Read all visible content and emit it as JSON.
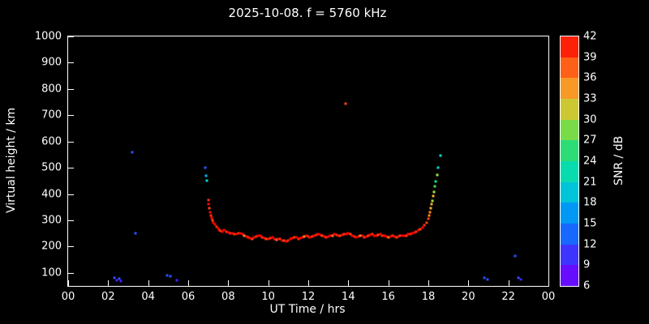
{
  "colors": {
    "background": "#000000",
    "frame": "#ffffff",
    "text": "#ffffff"
  },
  "colorbar": {
    "label": "SNR / dB",
    "range": [
      6,
      42
    ],
    "ticks": [
      6,
      9,
      12,
      15,
      18,
      21,
      24,
      27,
      30,
      33,
      36,
      39,
      42
    ],
    "stops": [
      {
        "v": 6,
        "c": "#8000ff"
      },
      {
        "v": 9,
        "c": "#4b1aff"
      },
      {
        "v": 12,
        "c": "#2e50ff"
      },
      {
        "v": 15,
        "c": "#0080ff"
      },
      {
        "v": 18,
        "c": "#00b0e8"
      },
      {
        "v": 21,
        "c": "#00d8c8"
      },
      {
        "v": 24,
        "c": "#10e096"
      },
      {
        "v": 27,
        "c": "#48d858"
      },
      {
        "v": 30,
        "c": "#a8e038"
      },
      {
        "v": 33,
        "c": "#f0b02c"
      },
      {
        "v": 36,
        "c": "#ff8020"
      },
      {
        "v": 39,
        "c": "#ff4010"
      },
      {
        "v": 42,
        "c": "#ff0000"
      }
    ]
  },
  "chart_data": {
    "type": "scatter",
    "title": "2025-10-08. f = 5760 kHz",
    "xlabel": "UT Time / hrs",
    "ylabel": "Virtual height / km",
    "xlim": [
      0,
      24
    ],
    "ylim": [
      50,
      1000
    ],
    "grid": false,
    "legend": "none (colorbar for SNR / dB on right)",
    "x_ticks": [
      {
        "v": 0,
        "label": "00"
      },
      {
        "v": 2,
        "label": "02"
      },
      {
        "v": 4,
        "label": "04"
      },
      {
        "v": 6,
        "label": "06"
      },
      {
        "v": 8,
        "label": "08"
      },
      {
        "v": 10,
        "label": "10"
      },
      {
        "v": 12,
        "label": "12"
      },
      {
        "v": 14,
        "label": "14"
      },
      {
        "v": 16,
        "label": "16"
      },
      {
        "v": 18,
        "label": "18"
      },
      {
        "v": 20,
        "label": "20"
      },
      {
        "v": 22,
        "label": "22"
      },
      {
        "v": 24,
        "label": "00"
      }
    ],
    "y_ticks": [
      100,
      200,
      300,
      400,
      500,
      600,
      700,
      800,
      900,
      1000
    ],
    "point_meaning": "[UT_hours, virtual_height_km, SNR_dB]",
    "points": [
      [
        2.3,
        80,
        12
      ],
      [
        2.45,
        72,
        9
      ],
      [
        2.55,
        78,
        12
      ],
      [
        2.62,
        70,
        9
      ],
      [
        3.2,
        560,
        12
      ],
      [
        3.35,
        250,
        12
      ],
      [
        4.95,
        90,
        12
      ],
      [
        5.1,
        88,
        12
      ],
      [
        5.45,
        72,
        9
      ],
      [
        6.85,
        500,
        12
      ],
      [
        6.9,
        468,
        18
      ],
      [
        6.94,
        452,
        21
      ],
      [
        7.0,
        378,
        40
      ],
      [
        7.03,
        360,
        42
      ],
      [
        7.06,
        345,
        39
      ],
      [
        7.1,
        332,
        42
      ],
      [
        7.14,
        318,
        40
      ],
      [
        7.18,
        308,
        42
      ],
      [
        7.22,
        300,
        39
      ],
      [
        7.27,
        292,
        42
      ],
      [
        7.33,
        284,
        42
      ],
      [
        7.4,
        276,
        40
      ],
      [
        7.48,
        268,
        42
      ],
      [
        7.56,
        263,
        42
      ],
      [
        7.64,
        260,
        39
      ],
      [
        7.72,
        257,
        42
      ],
      [
        7.8,
        262,
        42
      ],
      [
        7.9,
        256,
        40
      ],
      [
        8.0,
        255,
        42
      ],
      [
        8.1,
        252,
        40
      ],
      [
        8.2,
        250,
        42
      ],
      [
        8.3,
        248,
        39
      ],
      [
        8.4,
        246,
        42
      ],
      [
        8.5,
        250,
        40
      ],
      [
        8.6,
        252,
        42
      ],
      [
        8.7,
        248,
        42
      ],
      [
        8.8,
        242,
        36
      ],
      [
        8.9,
        238,
        42
      ],
      [
        9.0,
        235,
        40
      ],
      [
        9.1,
        232,
        42
      ],
      [
        9.2,
        230,
        39
      ],
      [
        9.3,
        234,
        42
      ],
      [
        9.4,
        238,
        40
      ],
      [
        9.5,
        242,
        42
      ],
      [
        9.6,
        240,
        42
      ],
      [
        9.7,
        236,
        40
      ],
      [
        9.8,
        232,
        42
      ],
      [
        9.9,
        230,
        39
      ],
      [
        10.0,
        228,
        42
      ],
      [
        10.1,
        232,
        40
      ],
      [
        10.2,
        236,
        42
      ],
      [
        10.3,
        230,
        42
      ],
      [
        10.4,
        226,
        36
      ],
      [
        10.5,
        230,
        42
      ],
      [
        10.6,
        228,
        40
      ],
      [
        10.7,
        224,
        42
      ],
      [
        10.8,
        222,
        39
      ],
      [
        10.9,
        220,
        42
      ],
      [
        11.0,
        222,
        40
      ],
      [
        11.1,
        228,
        42
      ],
      [
        11.2,
        232,
        42
      ],
      [
        11.3,
        236,
        39
      ],
      [
        11.4,
        234,
        42
      ],
      [
        11.5,
        230,
        40
      ],
      [
        11.6,
        232,
        42
      ],
      [
        11.7,
        236,
        42
      ],
      [
        11.8,
        238,
        36
      ],
      [
        11.9,
        240,
        42
      ],
      [
        12.0,
        238,
        40
      ],
      [
        12.1,
        236,
        42
      ],
      [
        12.2,
        238,
        39
      ],
      [
        12.3,
        242,
        42
      ],
      [
        12.4,
        244,
        40
      ],
      [
        12.5,
        246,
        42
      ],
      [
        12.6,
        244,
        42
      ],
      [
        12.7,
        240,
        39
      ],
      [
        12.8,
        238,
        42
      ],
      [
        12.9,
        236,
        40
      ],
      [
        13.0,
        238,
        42
      ],
      [
        13.1,
        240,
        42
      ],
      [
        13.2,
        242,
        36
      ],
      [
        13.3,
        246,
        42
      ],
      [
        13.4,
        244,
        40
      ],
      [
        13.5,
        240,
        42
      ],
      [
        13.6,
        242,
        39
      ],
      [
        13.7,
        244,
        42
      ],
      [
        13.8,
        246,
        40
      ],
      [
        13.85,
        745,
        39
      ],
      [
        13.9,
        248,
        42
      ],
      [
        14.0,
        252,
        42
      ],
      [
        14.1,
        248,
        39
      ],
      [
        14.2,
        242,
        42
      ],
      [
        14.3,
        238,
        40
      ],
      [
        14.4,
        236,
        42
      ],
      [
        14.5,
        238,
        42
      ],
      [
        14.6,
        242,
        36
      ],
      [
        14.7,
        240,
        42
      ],
      [
        14.8,
        236,
        40
      ],
      [
        14.9,
        238,
        42
      ],
      [
        15.0,
        240,
        39
      ],
      [
        15.1,
        244,
        42
      ],
      [
        15.2,
        246,
        40
      ],
      [
        15.3,
        242,
        42
      ],
      [
        15.4,
        240,
        42
      ],
      [
        15.5,
        244,
        39
      ],
      [
        15.6,
        246,
        42
      ],
      [
        15.7,
        242,
        40
      ],
      [
        15.8,
        240,
        42
      ],
      [
        15.9,
        238,
        42
      ],
      [
        16.0,
        236,
        36
      ],
      [
        16.1,
        238,
        42
      ],
      [
        16.2,
        240,
        40
      ],
      [
        16.3,
        238,
        42
      ],
      [
        16.4,
        236,
        39
      ],
      [
        16.5,
        238,
        42
      ],
      [
        16.6,
        240,
        40
      ],
      [
        16.7,
        242,
        42
      ],
      [
        16.8,
        240,
        42
      ],
      [
        16.9,
        242,
        39
      ],
      [
        17.0,
        246,
        42
      ],
      [
        17.1,
        248,
        40
      ],
      [
        17.2,
        252,
        42
      ],
      [
        17.3,
        254,
        42
      ],
      [
        17.4,
        258,
        40
      ],
      [
        17.5,
        262,
        42
      ],
      [
        17.6,
        266,
        39
      ],
      [
        17.7,
        272,
        42
      ],
      [
        17.8,
        280,
        40
      ],
      [
        17.9,
        290,
        39
      ],
      [
        18.0,
        305,
        39
      ],
      [
        18.04,
        318,
        36
      ],
      [
        18.08,
        330,
        36
      ],
      [
        18.12,
        345,
        33
      ],
      [
        18.16,
        360,
        33
      ],
      [
        18.2,
        375,
        30
      ],
      [
        18.24,
        392,
        33
      ],
      [
        18.28,
        408,
        30
      ],
      [
        18.33,
        428,
        27
      ],
      [
        18.38,
        448,
        24
      ],
      [
        18.44,
        472,
        30
      ],
      [
        18.5,
        500,
        21
      ],
      [
        18.62,
        548,
        21
      ],
      [
        20.8,
        80,
        12
      ],
      [
        20.95,
        76,
        12
      ],
      [
        22.35,
        165,
        12
      ],
      [
        22.5,
        80,
        12
      ],
      [
        22.62,
        74,
        9
      ]
    ]
  }
}
